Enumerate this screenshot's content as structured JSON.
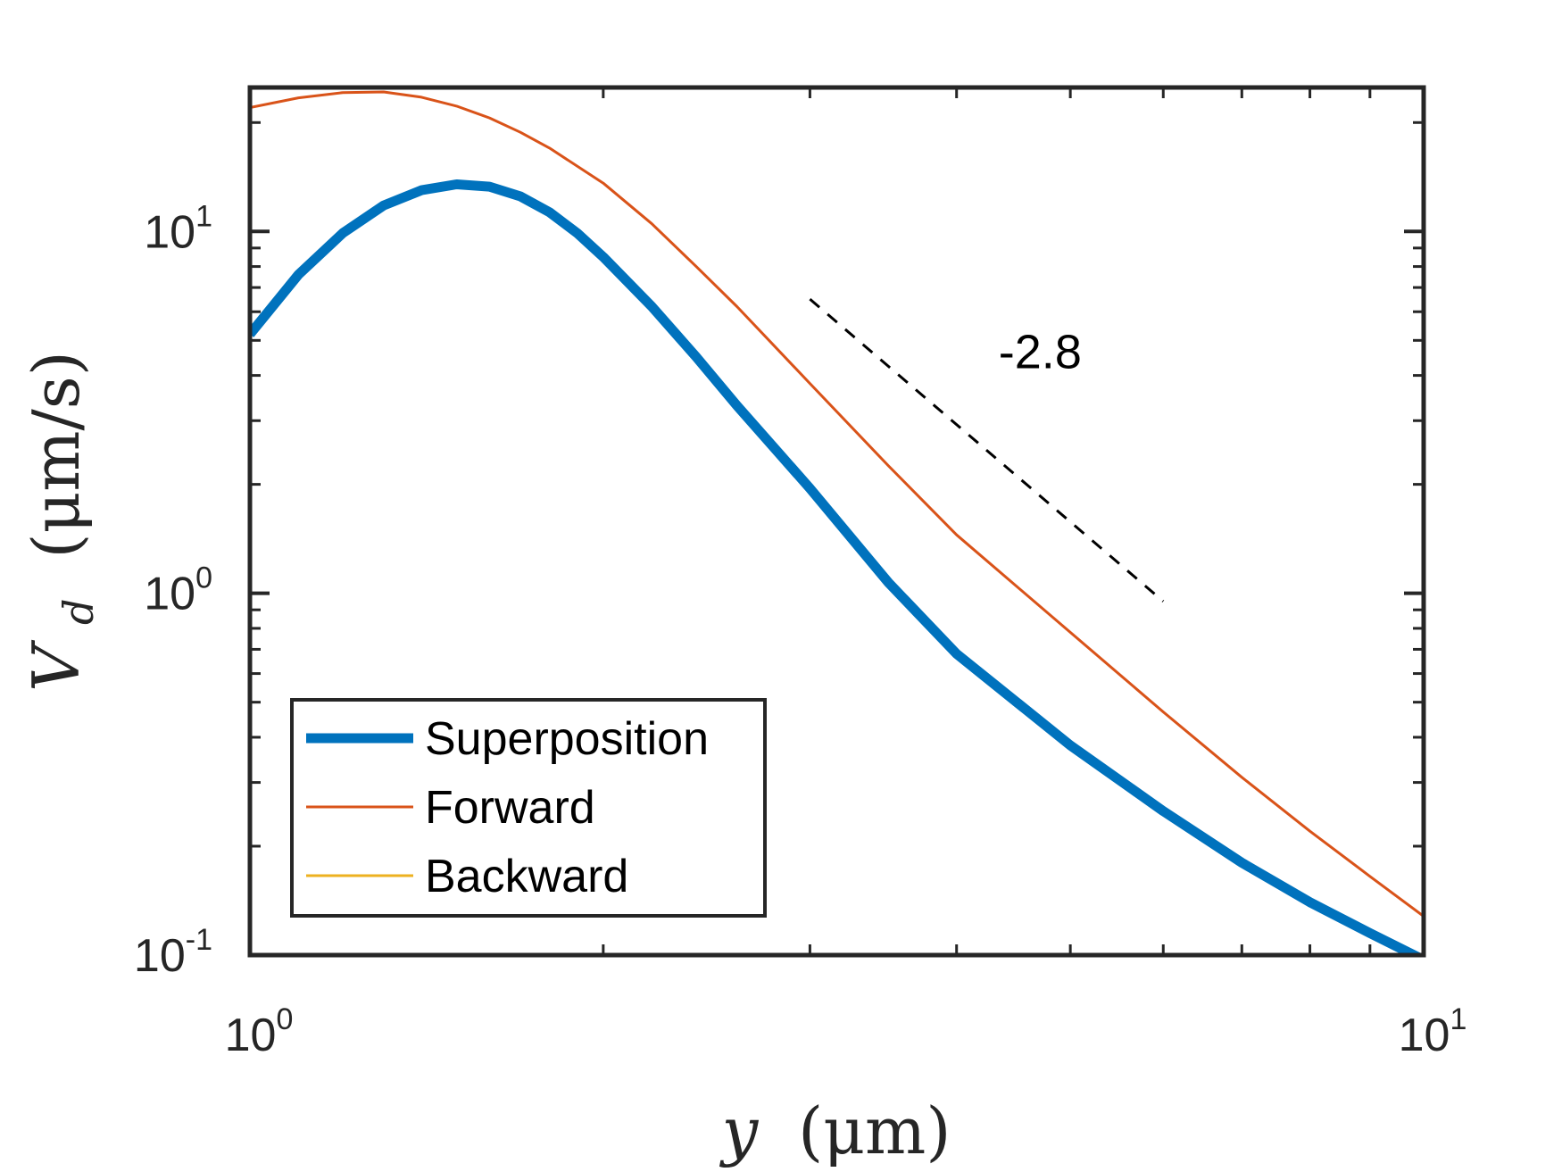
{
  "chart_data": {
    "type": "line",
    "x_scale": "log",
    "y_scale": "log",
    "xlim": [
      1,
      10
    ],
    "ylim": [
      0.1,
      25
    ],
    "xlabel": {
      "symbol": "y",
      "unit": "(μm)"
    },
    "ylabel": {
      "symbol": "V",
      "subscript": "d",
      "unit": "(μm/s)"
    },
    "x_ticks": [
      {
        "value": 1,
        "base": "10",
        "exp": "0"
      },
      {
        "value": 10,
        "base": "10",
        "exp": "1"
      }
    ],
    "y_ticks": [
      {
        "value": 0.1,
        "base": "10",
        "exp": "-1"
      },
      {
        "value": 1,
        "base": "10",
        "exp": "0"
      },
      {
        "value": 10,
        "base": "10",
        "exp": "1"
      }
    ],
    "grid": false,
    "legend_position": "bottom-left",
    "series": [
      {
        "name": "Superposition",
        "color": "#0072BD",
        "line_width": "thick",
        "x": [
          1.0,
          1.1,
          1.2,
          1.3,
          1.4,
          1.5,
          1.6,
          1.7,
          1.8,
          1.9,
          2.0,
          2.2,
          2.4,
          2.6,
          3.0,
          3.5,
          4.0,
          5.0,
          6.0,
          7.0,
          8.0,
          9.0,
          10.0
        ],
        "values": [
          5.2,
          7.6,
          9.9,
          11.8,
          13.0,
          13.5,
          13.3,
          12.5,
          11.3,
          9.9,
          8.5,
          6.2,
          4.5,
          3.3,
          1.95,
          1.07,
          0.68,
          0.38,
          0.25,
          0.18,
          0.14,
          0.115,
          0.097
        ]
      },
      {
        "name": "Forward",
        "color": "#D95319",
        "line_width": "thin",
        "x": [
          1.0,
          1.1,
          1.2,
          1.3,
          1.4,
          1.5,
          1.6,
          1.7,
          1.8,
          2.0,
          2.2,
          2.4,
          2.6,
          3.0,
          3.5,
          4.0,
          5.0,
          6.0,
          7.0,
          8.0,
          9.0,
          10.0
        ],
        "values": [
          22.0,
          23.4,
          24.2,
          24.3,
          23.5,
          22.2,
          20.6,
          18.8,
          17.0,
          13.6,
          10.5,
          8.0,
          6.2,
          3.8,
          2.25,
          1.45,
          0.78,
          0.47,
          0.31,
          0.22,
          0.165,
          0.128
        ]
      },
      {
        "name": "Backward",
        "color": "#EDB120",
        "line_width": "thin",
        "x": [],
        "values": []
      }
    ],
    "annotations": [
      {
        "text": "-2.8",
        "type": "slope-guide",
        "style": "dashed",
        "color": "#000000",
        "from": [
          3.0,
          6.5
        ],
        "to": [
          6.0,
          0.95
        ]
      }
    ]
  }
}
